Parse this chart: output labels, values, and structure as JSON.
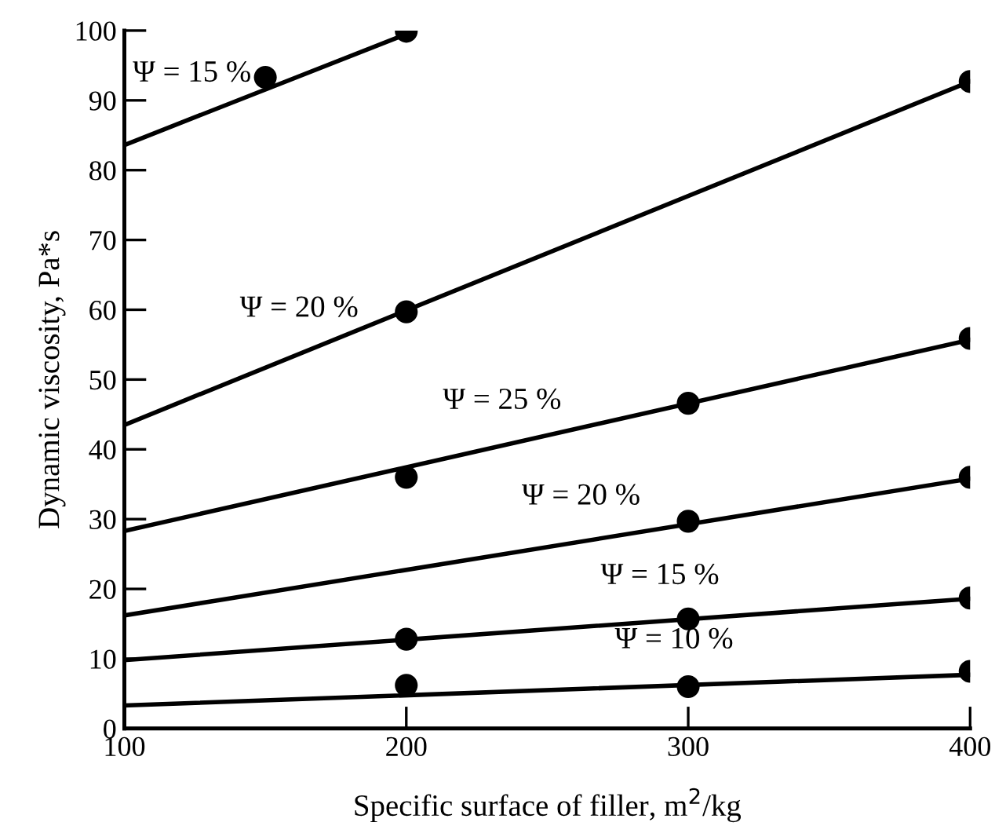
{
  "chart_data": {
    "type": "line",
    "xlabel": "Specific surface of filler, m$^{2}$/kg",
    "ylabel": "Dynamic viscosity, Pa*s",
    "xlim": [
      100,
      400
    ],
    "ylim": [
      0,
      100
    ],
    "xticks": [
      100,
      200,
      300,
      400
    ],
    "yticks": [
      0,
      10,
      20,
      30,
      40,
      50,
      60,
      70,
      80,
      90,
      100
    ],
    "grid": false,
    "series": [
      {
        "color": "#000000",
        "x": [
          100,
          200
        ],
        "values": [
          83.6,
          99.5
        ]
      },
      {
        "type": "scatter",
        "color": "#000000",
        "marker": "circle",
        "x": [
          150,
          200
        ],
        "values": [
          93.3,
          99.9
        ]
      },
      {
        "color": "#000000",
        "x": [
          100,
          400
        ],
        "values": [
          43.5,
          92.7
        ]
      },
      {
        "type": "scatter",
        "color": "#000000",
        "marker": "circle",
        "x": [
          200,
          400
        ],
        "values": [
          59.7,
          92.7
        ]
      },
      {
        "color": "#000000",
        "x": [
          100,
          400
        ],
        "values": [
          28.3,
          55.7
        ]
      },
      {
        "type": "scatter",
        "color": "#000000",
        "marker": "circle",
        "x": [
          200,
          300,
          400
        ],
        "values": [
          36.0,
          46.6,
          55.9
        ]
      },
      {
        "color": "#000000",
        "x": [
          100,
          400
        ],
        "values": [
          16.2,
          35.8
        ]
      },
      {
        "type": "scatter",
        "color": "#000000",
        "marker": "circle",
        "x": [
          300,
          400
        ],
        "values": [
          29.7,
          36.0
        ]
      },
      {
        "color": "#000000",
        "x": [
          100,
          400
        ],
        "values": [
          9.8,
          18.6
        ]
      },
      {
        "type": "scatter",
        "color": "#000000",
        "marker": "circle",
        "x": [
          200,
          300,
          400
        ],
        "values": [
          12.8,
          15.7,
          18.7
        ]
      },
      {
        "color": "#000000",
        "x": [
          100,
          400
        ],
        "values": [
          3.3,
          7.7
        ]
      },
      {
        "type": "scatter",
        "color": "#000000",
        "marker": "circle",
        "x": [
          200,
          300,
          400
        ],
        "values": [
          6.2,
          6.0,
          8.2
        ]
      }
    ],
    "annotations": [
      {
        "text": "Ψ = 15 %",
        "x": 124,
        "y": 87.4
      },
      {
        "text": "Ψ = 20 %",
        "x": 162,
        "y": 53.7
      },
      {
        "text": "Ψ = 25 %",
        "x": 234,
        "y": 40.5
      },
      {
        "text": "Ψ = 20 %",
        "x": 262,
        "y": 26.8
      },
      {
        "text": "Ψ = 15 %",
        "x": 290,
        "y": 15.4
      },
      {
        "text": "Ψ = 10 %",
        "x": 295,
        "y": 6.2
      }
    ]
  }
}
